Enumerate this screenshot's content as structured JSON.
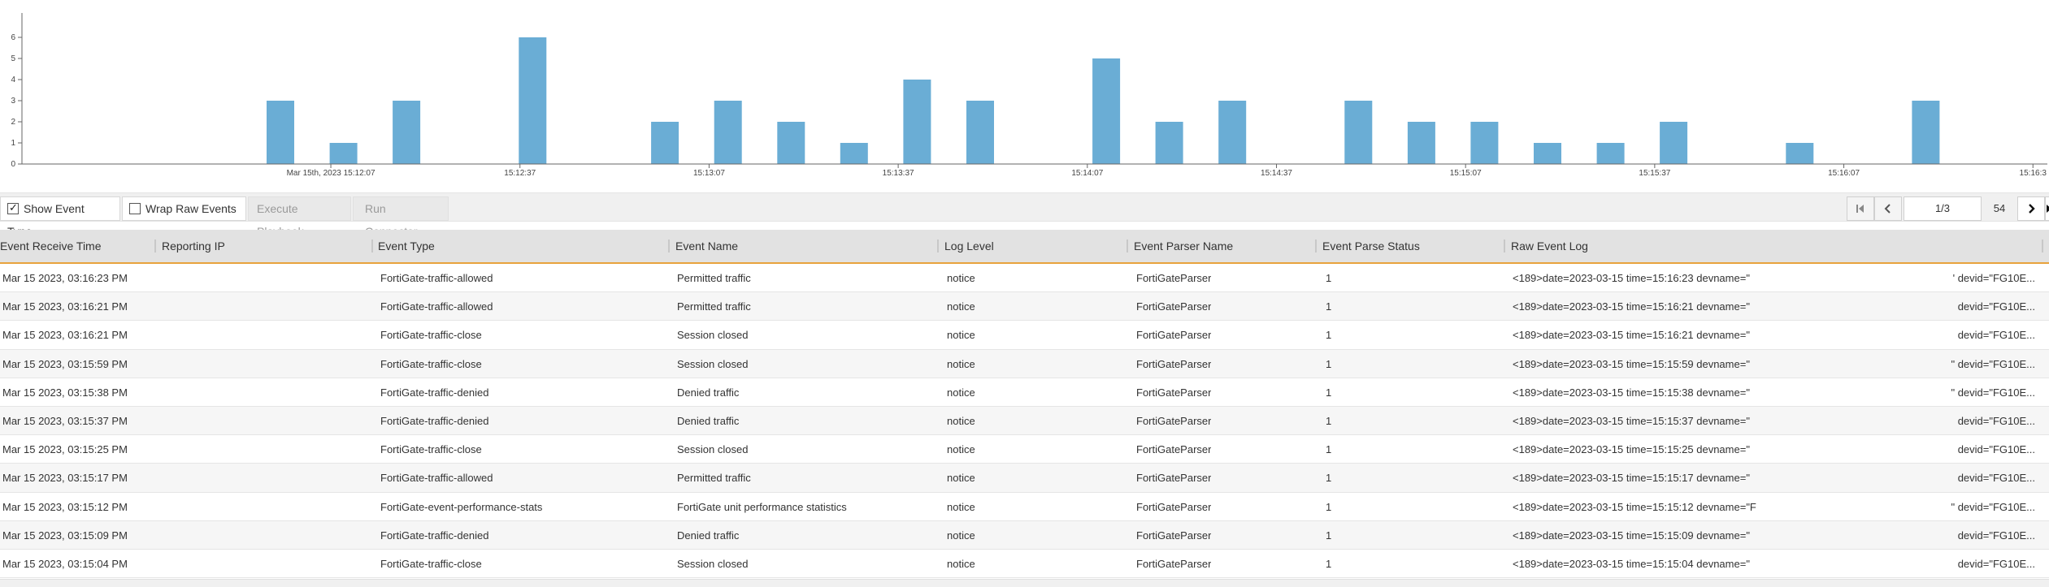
{
  "chart_data": {
    "type": "bar",
    "x_tick_labels": [
      "Mar 15th, 2023 15:12:07",
      "15:12:37",
      "15:13:07",
      "15:13:37",
      "15:14:07",
      "15:14:37",
      "15:15:07",
      "15:15:37",
      "15:16:07",
      "15:16:3"
    ],
    "y_tick_labels": [
      "0",
      "1",
      "2",
      "3",
      "4",
      "5",
      "6"
    ],
    "ylim": [
      0,
      7
    ],
    "bars": [
      {
        "time": "15:11:59",
        "value": 3
      },
      {
        "time": "15:12:09",
        "value": 1
      },
      {
        "time": "15:12:19",
        "value": 3
      },
      {
        "time": "15:12:39",
        "value": 6
      },
      {
        "time": "15:13:00",
        "value": 2
      },
      {
        "time": "15:13:10",
        "value": 3
      },
      {
        "time": "15:13:20",
        "value": 2
      },
      {
        "time": "15:13:30",
        "value": 1
      },
      {
        "time": "15:13:40",
        "value": 4
      },
      {
        "time": "15:13:50",
        "value": 3
      },
      {
        "time": "15:14:10",
        "value": 5
      },
      {
        "time": "15:14:20",
        "value": 2
      },
      {
        "time": "15:14:30",
        "value": 3
      },
      {
        "time": "15:14:50",
        "value": 3
      },
      {
        "time": "15:15:00",
        "value": 2
      },
      {
        "time": "15:15:10",
        "value": 2
      },
      {
        "time": "15:15:20",
        "value": 1
      },
      {
        "time": "15:15:30",
        "value": 1
      },
      {
        "time": "15:15:40",
        "value": 2
      },
      {
        "time": "15:16:00",
        "value": 1
      },
      {
        "time": "15:16:20",
        "value": 3
      }
    ],
    "bar_color": "#6aadd5",
    "grid": false
  },
  "toolbar": {
    "show_event_type_label": "Show Event Type",
    "show_event_type_checked": true,
    "wrap_raw_events_label": "Wrap Raw Events",
    "wrap_raw_events_checked": false,
    "execute_playbook_label": "Execute Playbook",
    "run_connector_label": "Run Connector"
  },
  "pager": {
    "first_icon": "first-page-icon",
    "prev_icon": "chevron-left-icon",
    "page_value": "1/3",
    "total": "54",
    "next_icon": "chevron-right-icon",
    "last_icon": "last-page-icon"
  },
  "table": {
    "columns": [
      "Event Receive Time",
      "Reporting IP",
      "Event Type",
      "Event Name",
      "Log Level",
      "Event Parser Name",
      "Event Parse Status",
      "Raw Event Log"
    ],
    "rows": [
      [
        "Mar 15 2023, 03:16:23 PM",
        "",
        "FortiGate-traffic-allowed",
        "Permitted traffic",
        "notice",
        "FortiGateParser",
        "1",
        "<189>date=2023-03-15 time=15:16:23 devname=\"",
        "' devid=\"FG10E..."
      ],
      [
        "Mar 15 2023, 03:16:21 PM",
        "",
        "FortiGate-traffic-allowed",
        "Permitted traffic",
        "notice",
        "FortiGateParser",
        "1",
        "<189>date=2023-03-15 time=15:16:21 devname=\"",
        "devid=\"FG10E..."
      ],
      [
        "Mar 15 2023, 03:16:21 PM",
        "",
        "FortiGate-traffic-close",
        "Session closed",
        "notice",
        "FortiGateParser",
        "1",
        "<189>date=2023-03-15 time=15:16:21 devname=\"",
        "devid=\"FG10E..."
      ],
      [
        "Mar 15 2023, 03:15:59 PM",
        "",
        "FortiGate-traffic-close",
        "Session closed",
        "notice",
        "FortiGateParser",
        "1",
        "<189>date=2023-03-15 time=15:15:59 devname=\"",
        "\" devid=\"FG10E..."
      ],
      [
        "Mar 15 2023, 03:15:38 PM",
        "",
        "FortiGate-traffic-denied",
        "Denied traffic",
        "notice",
        "FortiGateParser",
        "1",
        "<189>date=2023-03-15 time=15:15:38 devname=\"",
        "\" devid=\"FG10E..."
      ],
      [
        "Mar 15 2023, 03:15:37 PM",
        "",
        "FortiGate-traffic-denied",
        "Denied traffic",
        "notice",
        "FortiGateParser",
        "1",
        "<189>date=2023-03-15 time=15:15:37 devname=\"",
        "devid=\"FG10E..."
      ],
      [
        "Mar 15 2023, 03:15:25 PM",
        "",
        "FortiGate-traffic-close",
        "Session closed",
        "notice",
        "FortiGateParser",
        "1",
        "<189>date=2023-03-15 time=15:15:25 devname=\"",
        "devid=\"FG10E..."
      ],
      [
        "Mar 15 2023, 03:15:17 PM",
        "",
        "FortiGate-traffic-allowed",
        "Permitted traffic",
        "notice",
        "FortiGateParser",
        "1",
        "<189>date=2023-03-15 time=15:15:17 devname=\"",
        "devid=\"FG10E..."
      ],
      [
        "Mar 15 2023, 03:15:12 PM",
        "",
        "FortiGate-event-performance-stats",
        "FortiGate unit performance statistics",
        "notice",
        "FortiGateParser",
        "1",
        "<189>date=2023-03-15 time=15:15:12 devname=\"F",
        "\" devid=\"FG10E..."
      ],
      [
        "Mar 15 2023, 03:15:09 PM",
        "",
        "FortiGate-traffic-denied",
        "Denied traffic",
        "notice",
        "FortiGateParser",
        "1",
        "<189>date=2023-03-15 time=15:15:09 devname=\"",
        "devid=\"FG10E..."
      ],
      [
        "Mar 15 2023, 03:15:04 PM",
        "",
        "FortiGate-traffic-close",
        "Session closed",
        "notice",
        "FortiGateParser",
        "1",
        "<189>date=2023-03-15 time=15:15:04 devname=\"",
        "devid=\"FG10E..."
      ]
    ]
  }
}
